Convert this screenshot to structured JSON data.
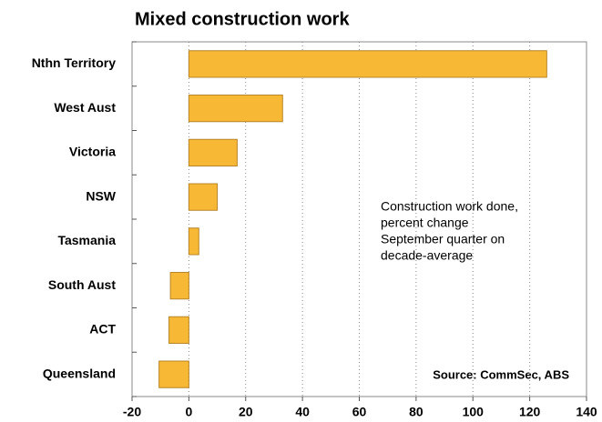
{
  "chart_data": {
    "type": "bar",
    "orientation": "horizontal",
    "title": "Mixed construction work",
    "categories": [
      "Nthn Territory",
      "West Aust",
      "Victoria",
      "NSW",
      "Tasmania",
      "South Aust",
      "ACT",
      "Queensland"
    ],
    "values": [
      126,
      33,
      17,
      10,
      3.5,
      -6.5,
      -7,
      -10.5
    ],
    "color": "#f6b835",
    "xlim": [
      -20,
      140
    ],
    "xticks": [
      -20,
      0,
      20,
      40,
      60,
      80,
      100,
      120,
      140
    ],
    "grid": true,
    "annotation": [
      "Construction work done,",
      "percent change",
      "September quarter on",
      "decade-average"
    ],
    "source": "Source: CommSec, ABS"
  }
}
